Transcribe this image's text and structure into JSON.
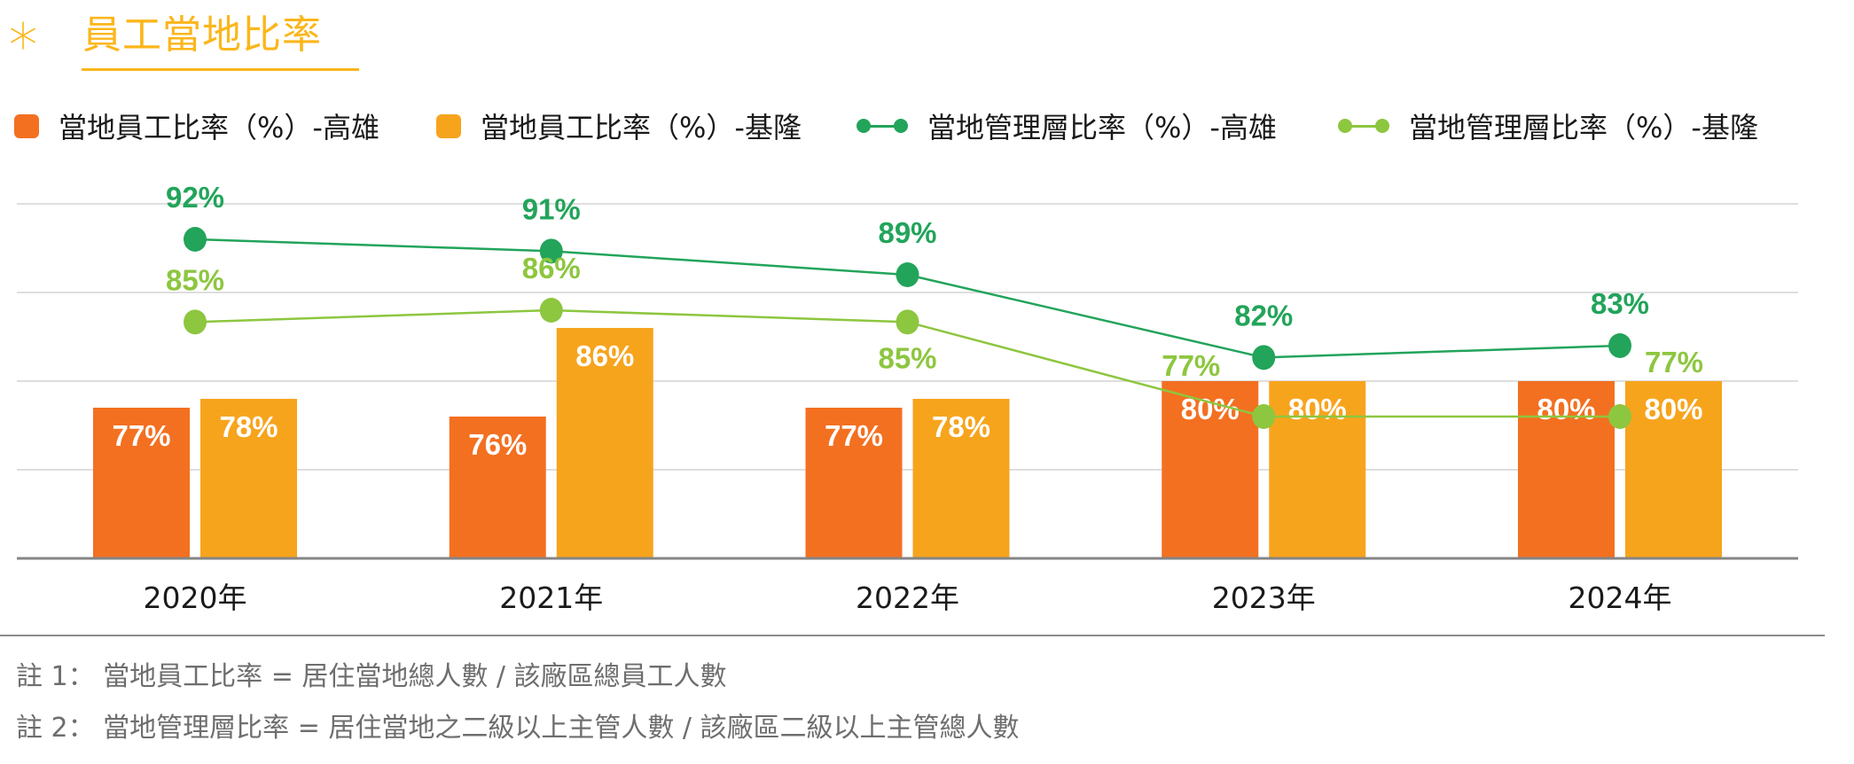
{
  "header": {
    "title": "員工當地比率",
    "title_color": "#FBB61B",
    "icon": "asterisk-icon"
  },
  "legend": [
    {
      "label": "當地員工比率（%）-高雄",
      "type": "bar",
      "color": "#F37021"
    },
    {
      "label": "當地員工比率（%）-基隆",
      "type": "bar",
      "color": "#F7A41D"
    },
    {
      "label": "當地管理層比率（%）-高雄",
      "type": "line",
      "color": "#22A45A"
    },
    {
      "label": "當地管理層比率（%）-基隆",
      "type": "line",
      "color": "#8DC63F"
    }
  ],
  "chart_data": {
    "type": "bar",
    "title": "員工當地比率",
    "xlabel": "",
    "ylabel": "",
    "categories": [
      "2020年",
      "2021年",
      "2022年",
      "2023年",
      "2024年"
    ],
    "ylim": [
      60,
      100
    ],
    "y2lim": [
      65,
      95
    ],
    "grid": true,
    "legend_position": "top",
    "series": [
      {
        "name": "當地員工比率（%）-高雄",
        "type": "bar",
        "axis": "primary",
        "color": "#F37021",
        "values": [
          77,
          76,
          77,
          80,
          80
        ],
        "labels": [
          "77%",
          "76%",
          "77%",
          "80%",
          "80%"
        ]
      },
      {
        "name": "當地員工比率（%）-基隆",
        "type": "bar",
        "axis": "primary",
        "color": "#F7A41D",
        "values": [
          78,
          86,
          78,
          80,
          80
        ],
        "labels": [
          "78%",
          "86%",
          "78%",
          "80%",
          "80%"
        ]
      },
      {
        "name": "當地管理層比率（%）-高雄",
        "type": "line",
        "axis": "secondary",
        "color": "#22A45A",
        "values": [
          92,
          91,
          89,
          82,
          83
        ],
        "labels": [
          "92%",
          "91%",
          "89%",
          "82%",
          "83%"
        ]
      },
      {
        "name": "當地管理層比率（%）-基隆",
        "type": "line",
        "axis": "secondary",
        "color": "#8DC63F",
        "values": [
          85,
          86,
          85,
          77,
          77
        ],
        "labels": [
          "85%",
          "86%",
          "85%",
          "77%",
          "77%"
        ],
        "label_placement": [
          "above",
          "above",
          "below",
          "above-left",
          "above-right"
        ]
      }
    ]
  },
  "notes": [
    "註 1： 當地員工比率 = 居住當地總人數 / 該廠區總員工人數",
    "註 2： 當地管理層比率 = 居住當地之二級以上主管人數 / 該廠區二級以上主管總人數"
  ]
}
